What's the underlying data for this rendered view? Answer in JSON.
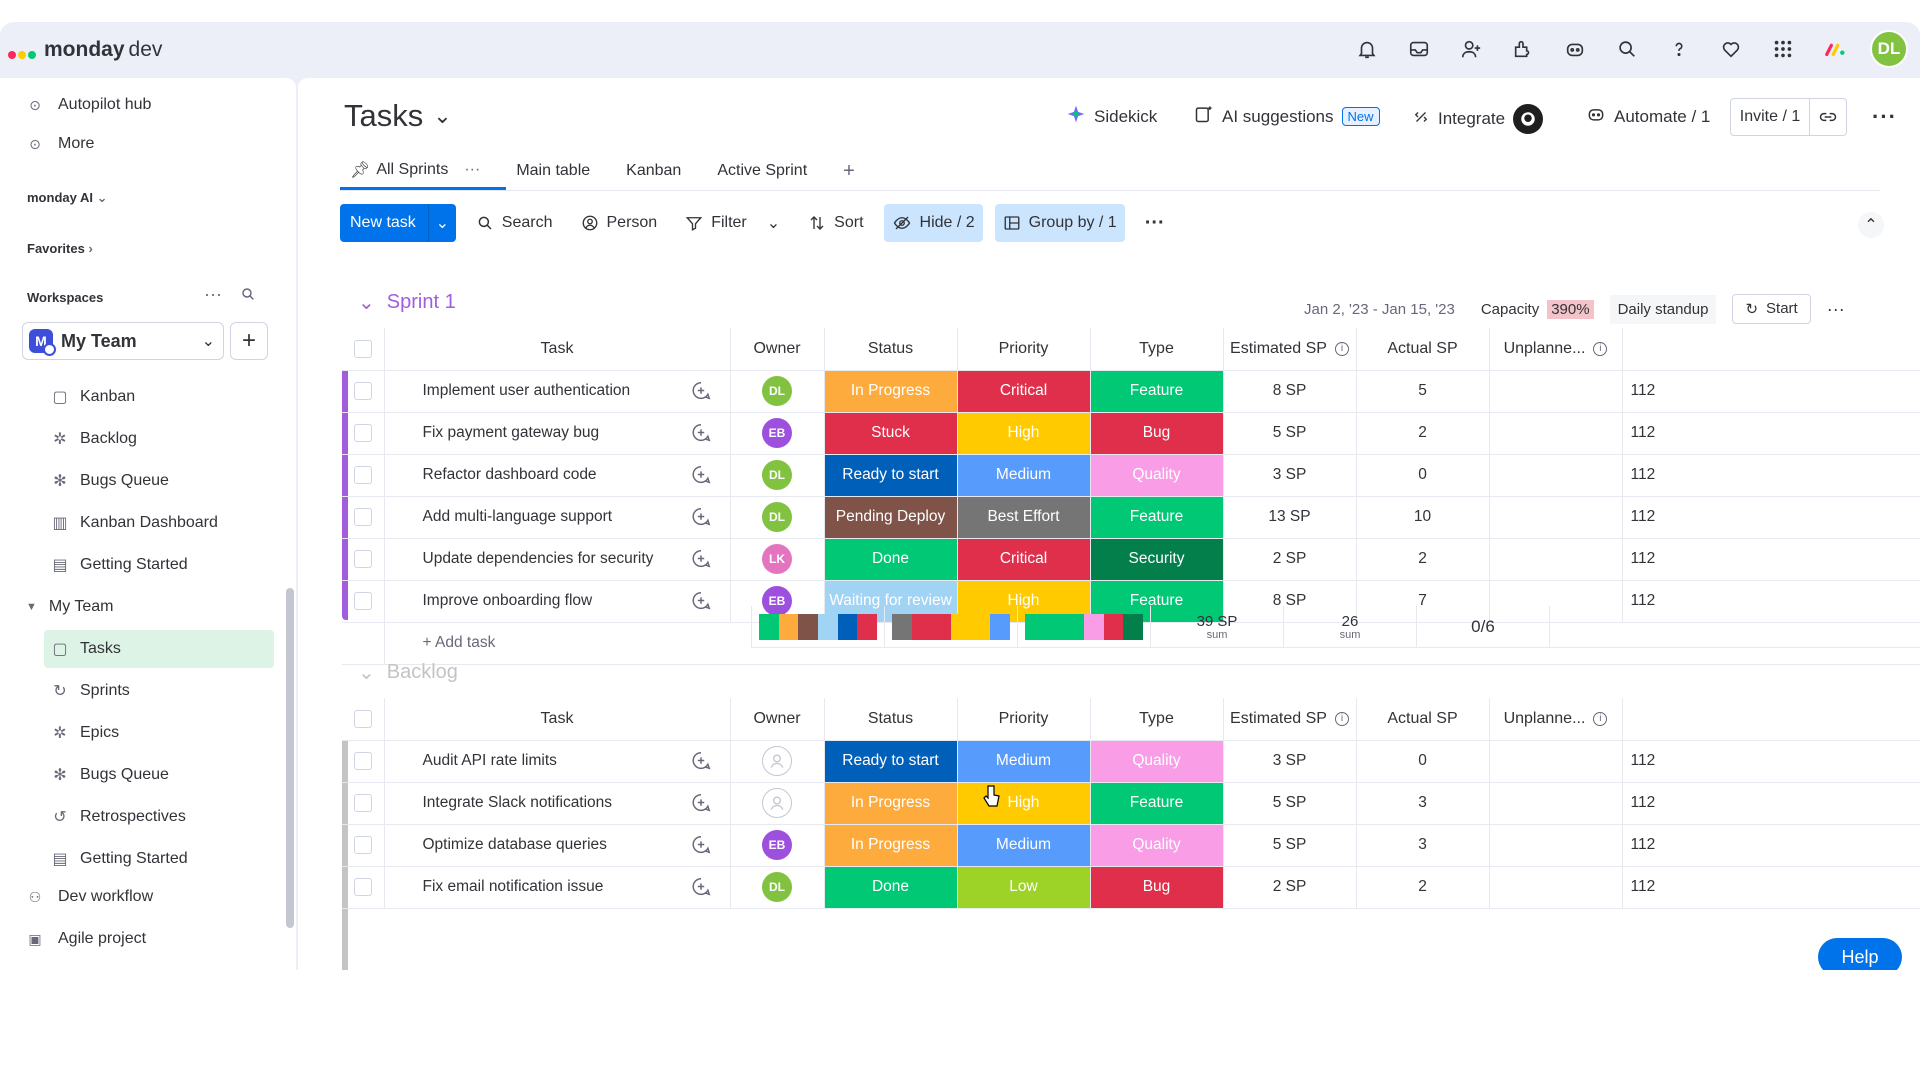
{
  "brand": {
    "name": "monday",
    "product": "dev"
  },
  "top_icons": [
    "bell-icon",
    "inbox-icon",
    "invite-members-icon",
    "apps-icon",
    "ai-bot-icon",
    "search-icon",
    "help-icon",
    "heart-icon",
    "grid-menu-icon"
  ],
  "user": {
    "initials": "DL"
  },
  "sidebar": {
    "top_items": [
      {
        "label": "Autopilot hub",
        "icon": "autopilot-icon"
      },
      {
        "label": "More",
        "icon": "more-icon"
      }
    ],
    "monday_ai": "monday AI",
    "favorites": "Favorites",
    "workspaces": "Workspaces",
    "workspace": {
      "logo": "M",
      "name": "My Team"
    },
    "items": [
      {
        "label": "Kanban",
        "icon": "board-icon"
      },
      {
        "label": "Backlog",
        "icon": "backlog-icon"
      },
      {
        "label": "Bugs Queue",
        "icon": "bug-icon"
      },
      {
        "label": "Kanban Dashboard",
        "icon": "dashboard-icon"
      },
      {
        "label": "Getting Started",
        "icon": "doc-icon"
      }
    ],
    "folder": "My Team",
    "folder_items": [
      {
        "label": "Tasks",
        "icon": "board-icon"
      },
      {
        "label": "Sprints",
        "icon": "sprint-icon"
      },
      {
        "label": "Epics",
        "icon": "epic-icon"
      },
      {
        "label": "Bugs Queue",
        "icon": "bug-icon"
      },
      {
        "label": "Retrospectives",
        "icon": "retro-icon"
      },
      {
        "label": "Getting Started",
        "icon": "doc-icon"
      }
    ],
    "bottom_items": [
      {
        "label": "Dev workflow",
        "icon": "workflow-icon"
      },
      {
        "label": "Agile project",
        "icon": "project-icon"
      }
    ]
  },
  "board": {
    "title": "Tasks",
    "actions": {
      "sidekick": "Sidekick",
      "ai_suggestions": "AI suggestions",
      "new_badge": "New",
      "integrate": "Integrate",
      "automate": "Automate / 1",
      "invite": "Invite / 1"
    },
    "tabs": [
      "All Sprints",
      "Main table",
      "Kanban",
      "Active Sprint"
    ],
    "toolbar": {
      "new_task": "New task",
      "search": "Search",
      "person": "Person",
      "filter": "Filter",
      "sort": "Sort",
      "hide": "Hide / 2",
      "group_by": "Group by / 1"
    }
  },
  "columns": [
    "Task",
    "Owner",
    "Status",
    "Priority",
    "Type",
    "Estimated SP",
    "Actual SP",
    "Unplanne..."
  ],
  "owners": {
    "DL": "#81c341",
    "EB": "#9d50dd",
    "LK": "#e474c0"
  },
  "colors": {
    "In Progress": "#fdab3d",
    "Stuck": "#df2f4a",
    "Ready to start": "#0060b9",
    "Pending Deploy": "#7f5347",
    "Done": "#00c875",
    "Waiting for review": "#a1d3f5",
    "Critical": "#df2f4a",
    "High": "#ffcb00",
    "Medium": "#579bfc",
    "Best Effort": "#757575",
    "Low": "#9cd326",
    "Feature": "#00c875",
    "Bug": "#df2f4a",
    "Quality": "#f89de6",
    "Security": "#037f4c"
  },
  "groups": [
    {
      "name": "Sprint 1",
      "color": "#a25ddc",
      "dates": "Jan 2, '23 - Jan 15, '23",
      "capacity_label": "Capacity",
      "capacity": "390%",
      "standup": "Daily standup",
      "start": "Start",
      "rows": [
        {
          "task": "Implement user authentication",
          "owner": "DL",
          "status": "In Progress",
          "priority": "Critical",
          "type": "Feature",
          "est": "8 SP",
          "actual": "5",
          "unpl": "112"
        },
        {
          "task": "Fix payment gateway bug",
          "owner": "EB",
          "status": "Stuck",
          "priority": "High",
          "type": "Bug",
          "est": "5 SP",
          "actual": "2",
          "unpl": "112"
        },
        {
          "task": "Refactor dashboard code",
          "owner": "DL",
          "status": "Ready to start",
          "priority": "Medium",
          "type": "Quality",
          "est": "3 SP",
          "actual": "0",
          "unpl": "112"
        },
        {
          "task": "Add multi-language support",
          "owner": "DL",
          "status": "Pending Deploy",
          "priority": "Best Effort",
          "type": "Feature",
          "est": "13 SP",
          "actual": "10",
          "unpl": "112"
        },
        {
          "task": "Update dependencies for security",
          "owner": "LK",
          "status": "Done",
          "priority": "Critical",
          "type": "Security",
          "est": "2 SP",
          "actual": "2",
          "unpl": "112"
        },
        {
          "task": "Improve onboarding flow",
          "owner": "EB",
          "status": "Waiting for review",
          "priority": "High",
          "type": "Feature",
          "est": "8 SP",
          "actual": "7",
          "unpl": "112"
        }
      ],
      "add_task": "+ Add task",
      "summary": {
        "est": "39 SP",
        "est_sub": "sum",
        "actual": "26",
        "actual_sub": "sum",
        "unpl": "0/6"
      },
      "status_bar": [
        "#00c875",
        "#fdab3d",
        "#7f5347",
        "#a1d3f5",
        "#0060b9",
        "#df2f4a"
      ],
      "priority_bar": [
        "#757575",
        "#df2f4a",
        "#df2f4a",
        "#ffcb00",
        "#ffcb00",
        "#579bfc"
      ],
      "type_bar": [
        "#00c875",
        "#00c875",
        "#00c875",
        "#f89de6",
        "#df2f4a",
        "#037f4c"
      ]
    },
    {
      "name": "Backlog",
      "color": "#c4c4c4",
      "rows": [
        {
          "task": "Audit API rate limits",
          "owner": "",
          "status": "Ready to start",
          "priority": "Medium",
          "type": "Quality",
          "est": "3 SP",
          "actual": "0",
          "unpl": "112"
        },
        {
          "task": "Integrate Slack notifications",
          "owner": "",
          "status": "In Progress",
          "priority": "High",
          "type": "Feature",
          "est": "5 SP",
          "actual": "3",
          "unpl": "112"
        },
        {
          "task": "Optimize database queries",
          "owner": "EB",
          "status": "In Progress",
          "priority": "Medium",
          "type": "Quality",
          "est": "5 SP",
          "actual": "3",
          "unpl": "112"
        },
        {
          "task": "Fix email notification issue",
          "owner": "DL",
          "status": "Done",
          "priority": "Low",
          "type": "Bug",
          "est": "2 SP",
          "actual": "2",
          "unpl": "112"
        }
      ]
    }
  ],
  "help": "Help"
}
